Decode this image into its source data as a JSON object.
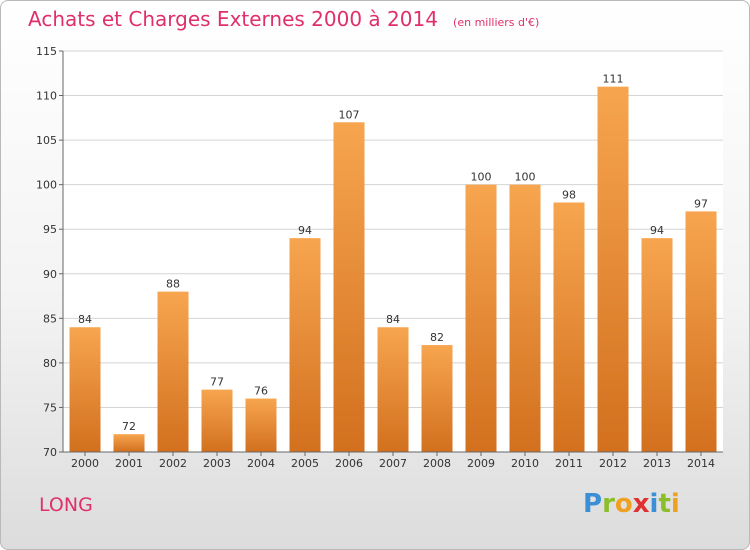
{
  "title": "Achats et Charges Externes 2000 à 2014",
  "subtitle": "(en milliers d'€)",
  "place": "LONG",
  "logo": {
    "text": "Proxiti",
    "letters": [
      {
        "ch": "P",
        "color": "#3a8fd6"
      },
      {
        "ch": "r",
        "color": "#8bbf2a"
      },
      {
        "ch": "o",
        "color": "#f0a020"
      },
      {
        "ch": "x",
        "color": "#e03030"
      },
      {
        "ch": "i",
        "color": "#3a8fd6"
      },
      {
        "ch": "t",
        "color": "#8bbf2a"
      },
      {
        "ch": "i",
        "color": "#f0a020"
      }
    ]
  },
  "colors": {
    "bar_top": "#f7a54f",
    "bar_bottom": "#d2701e",
    "grid": "#d4d4d4",
    "axis": "#666666",
    "accent": "#e0306a"
  },
  "chart_data": {
    "type": "bar",
    "categories": [
      "2000",
      "2001",
      "2002",
      "2003",
      "2004",
      "2005",
      "2006",
      "2007",
      "2008",
      "2009",
      "2010",
      "2011",
      "2012",
      "2013",
      "2014"
    ],
    "values": [
      84,
      72,
      88,
      77,
      76,
      94,
      107,
      84,
      82,
      100,
      100,
      98,
      111,
      94,
      97
    ],
    "title": "Achats et Charges Externes 2000 à 2014",
    "xlabel": "",
    "ylabel": "",
    "ylim": [
      70,
      115
    ],
    "yticks": [
      70,
      75,
      80,
      85,
      90,
      95,
      100,
      105,
      110,
      115
    ],
    "grid": true,
    "data_labels": true
  }
}
